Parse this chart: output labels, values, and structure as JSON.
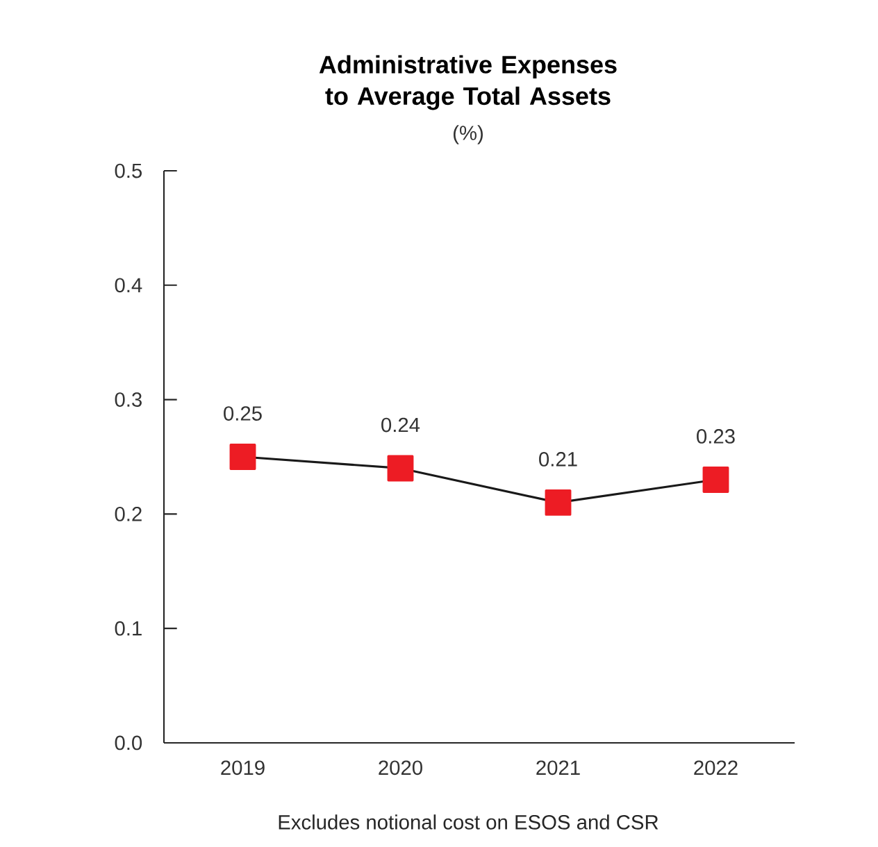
{
  "chart_data": {
    "type": "line",
    "title": "Administrative Expenses to Average Total Assets",
    "subtitle": "(%)",
    "categories": [
      "2019",
      "2020",
      "2021",
      "2022"
    ],
    "series": [
      {
        "color": "#ed1c24",
        "values": [
          0.25,
          0.24,
          0.21,
          0.23
        ]
      }
    ],
    "ylim": [
      0,
      0.5
    ],
    "yticks": [
      {
        "value": 0,
        "label": "0.0"
      },
      0.1,
      0.2,
      0.3,
      0.4,
      0.5
    ],
    "data_labels": true,
    "marker": "square",
    "line_style": "solid",
    "annotations": [
      "Excludes notional cost on ESOS and CSR"
    ]
  }
}
